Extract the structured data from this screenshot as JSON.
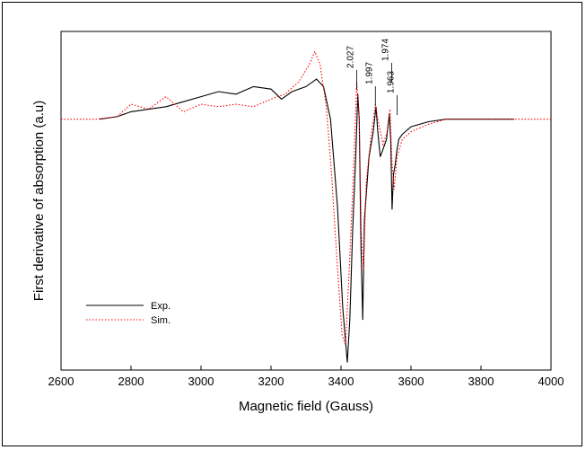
{
  "chart_data": {
    "type": "line",
    "xlabel": "Magnetic field (Gauss)",
    "ylabel": "First derivative of absorption (a.u)",
    "xlim": [
      2600,
      4000
    ],
    "ylim": [
      -1.0,
      0.35
    ],
    "x_ticks": [
      2600,
      2800,
      3000,
      3200,
      3400,
      3600,
      3800,
      4000
    ],
    "x_tick_labels": [
      "2600",
      "2800",
      "3000",
      "3200",
      "3400",
      "3600",
      "3800",
      "4000"
    ],
    "y_ticks": [],
    "grid": false,
    "legend_position": "bottom-left",
    "colors": {
      "exp": "#000000",
      "sim": "#ff0000"
    },
    "series": [
      {
        "name": "Exp.",
        "style": "solid",
        "points": [
          [
            2710,
            0.0
          ],
          [
            2760,
            0.01
          ],
          [
            2800,
            0.03
          ],
          [
            2850,
            0.04
          ],
          [
            2900,
            0.05
          ],
          [
            2950,
            0.07
          ],
          [
            3000,
            0.09
          ],
          [
            3050,
            0.11
          ],
          [
            3100,
            0.1
          ],
          [
            3150,
            0.13
          ],
          [
            3200,
            0.12
          ],
          [
            3230,
            0.08
          ],
          [
            3260,
            0.11
          ],
          [
            3300,
            0.13
          ],
          [
            3330,
            0.16
          ],
          [
            3350,
            0.13
          ],
          [
            3370,
            0.0
          ],
          [
            3390,
            -0.35
          ],
          [
            3405,
            -0.75
          ],
          [
            3418,
            -0.97
          ],
          [
            3425,
            -0.8
          ],
          [
            3433,
            -0.45
          ],
          [
            3442,
            -0.15
          ],
          [
            3448,
            0.1
          ],
          [
            3452,
            0.0
          ],
          [
            3457,
            -0.5
          ],
          [
            3462,
            -0.8
          ],
          [
            3467,
            -0.4
          ],
          [
            3480,
            -0.15
          ],
          [
            3492,
            -0.05
          ],
          [
            3500,
            0.05
          ],
          [
            3505,
            -0.05
          ],
          [
            3512,
            -0.15
          ],
          [
            3520,
            -0.12
          ],
          [
            3530,
            -0.08
          ],
          [
            3538,
            0.02
          ],
          [
            3542,
            -0.08
          ],
          [
            3546,
            -0.36
          ],
          [
            3550,
            -0.22
          ],
          [
            3555,
            -0.18
          ],
          [
            3560,
            -0.12
          ],
          [
            3565,
            -0.08
          ],
          [
            3575,
            -0.06
          ],
          [
            3600,
            -0.03
          ],
          [
            3650,
            -0.01
          ],
          [
            3700,
            0.0
          ],
          [
            3800,
            0.0
          ],
          [
            3895,
            0.0
          ]
        ]
      },
      {
        "name": "Sim.",
        "style": "dotted",
        "points": [
          [
            2600,
            0.0
          ],
          [
            2700,
            0.0
          ],
          [
            2760,
            0.01
          ],
          [
            2800,
            0.06
          ],
          [
            2850,
            0.04
          ],
          [
            2900,
            0.09
          ],
          [
            2950,
            0.03
          ],
          [
            3000,
            0.06
          ],
          [
            3050,
            0.05
          ],
          [
            3100,
            0.06
          ],
          [
            3150,
            0.05
          ],
          [
            3200,
            0.08
          ],
          [
            3240,
            0.1
          ],
          [
            3280,
            0.15
          ],
          [
            3310,
            0.22
          ],
          [
            3325,
            0.27
          ],
          [
            3340,
            0.22
          ],
          [
            3358,
            0.05
          ],
          [
            3372,
            -0.2
          ],
          [
            3388,
            -0.55
          ],
          [
            3403,
            -0.86
          ],
          [
            3413,
            -0.9
          ],
          [
            3425,
            -0.55
          ],
          [
            3436,
            -0.2
          ],
          [
            3445,
            0.15
          ],
          [
            3452,
            0.0
          ],
          [
            3458,
            -0.45
          ],
          [
            3464,
            -0.6
          ],
          [
            3472,
            -0.25
          ],
          [
            3485,
            -0.08
          ],
          [
            3498,
            0.06
          ],
          [
            3508,
            -0.02
          ],
          [
            3520,
            -0.1
          ],
          [
            3532,
            -0.05
          ],
          [
            3540,
            0.04
          ],
          [
            3546,
            -0.18
          ],
          [
            3552,
            -0.28
          ],
          [
            3560,
            -0.15
          ],
          [
            3575,
            -0.08
          ],
          [
            3600,
            -0.05
          ],
          [
            3650,
            -0.02
          ],
          [
            3700,
            0.0
          ],
          [
            3800,
            0.0
          ],
          [
            3900,
            0.0
          ],
          [
            4000,
            0.0
          ]
        ]
      }
    ],
    "annotations": [
      {
        "text": "2.027",
        "x": 3440
      },
      {
        "text": "1.997",
        "x": 3493
      },
      {
        "text": "1.974",
        "x": 3540
      },
      {
        "text": "1.963",
        "x": 3555
      }
    ]
  }
}
